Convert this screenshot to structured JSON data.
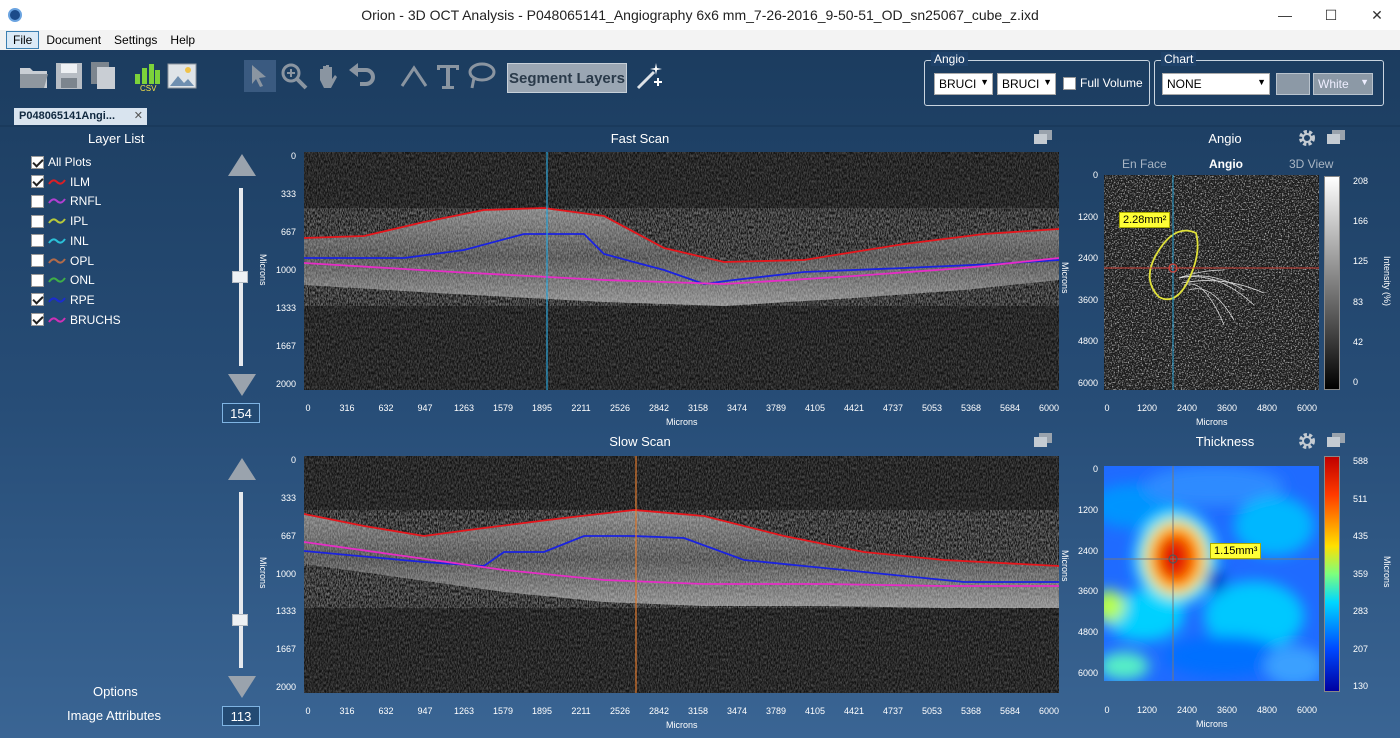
{
  "window": {
    "title": "Orion - 3D OCT Analysis - P048065141_Angiography 6x6 mm_7-26-2016_9-50-51_OD_sn25067_cube_z.ixd",
    "minimize": "—",
    "maximize": "☐",
    "close": "✕"
  },
  "menu": [
    "File",
    "Document",
    "Settings",
    "Help"
  ],
  "toolbar": {
    "segment_label": "Segment Layers",
    "csv_label": "CSV"
  },
  "angio_group": {
    "label": "Angio",
    "sel1": "BRUCI",
    "sel2": "BRUCI",
    "full_volume": "Full Volume",
    "full_volume_checked": false
  },
  "chart_group": {
    "label": "Chart",
    "select": "NONE",
    "color_select": "White"
  },
  "doc_tab": {
    "label": "P048065141Angi...",
    "close": "✕"
  },
  "layers": {
    "title": "Layer List",
    "items": [
      {
        "label": "All Plots",
        "checked": true,
        "color": ""
      },
      {
        "label": "ILM",
        "checked": true,
        "color": "#d91f26"
      },
      {
        "label": "RNFL",
        "checked": false,
        "color": "#b23fd1"
      },
      {
        "label": "IPL",
        "checked": false,
        "color": "#b7c93b"
      },
      {
        "label": "INL",
        "checked": false,
        "color": "#2bc1d8"
      },
      {
        "label": "OPL",
        "checked": false,
        "color": "#b36b4a"
      },
      {
        "label": "ONL",
        "checked": false,
        "color": "#3fae47"
      },
      {
        "label": "RPE",
        "checked": true,
        "color": "#1b2cd1"
      },
      {
        "label": "BRUCHS",
        "checked": true,
        "color": "#cf30b6"
      }
    ]
  },
  "options_label": "Options",
  "image_attributes_label": "Image Attributes",
  "fast_scan": {
    "title": "Fast Scan",
    "slice": "154",
    "slider_fraction": 0.5,
    "xlabel": "Microns",
    "ylabel": "Microns",
    "yticks": [
      "0",
      "333",
      "667",
      "1000",
      "1333",
      "1667",
      "2000"
    ],
    "xticks": [
      "0",
      "316",
      "632",
      "947",
      "1263",
      "1579",
      "1895",
      "2211",
      "2526",
      "2842",
      "3158",
      "3474",
      "3789",
      "4105",
      "4421",
      "4737",
      "5053",
      "5368",
      "5684",
      "6000"
    ]
  },
  "slow_scan": {
    "title": "Slow Scan",
    "slice": "113",
    "slider_fraction": 0.27,
    "xlabel": "Microns",
    "ylabel": "Microns",
    "yticks": [
      "0",
      "333",
      "667",
      "1000",
      "1333",
      "1667",
      "2000"
    ],
    "xticks": [
      "0",
      "316",
      "632",
      "947",
      "1263",
      "1579",
      "1895",
      "2211",
      "2526",
      "2842",
      "3158",
      "3474",
      "3789",
      "4105",
      "4421",
      "4737",
      "5053",
      "5368",
      "5684",
      "6000"
    ]
  },
  "angio_panel": {
    "title": "Angio",
    "tabs": [
      "En Face",
      "Angio",
      "3D View"
    ],
    "active_tab": "Angio",
    "annotation": "2.28mm²",
    "yticks": [
      "0",
      "1200",
      "2400",
      "3600",
      "4800",
      "6000"
    ],
    "xticks": [
      "0",
      "1200",
      "2400",
      "3600",
      "4800",
      "6000"
    ],
    "xlabel": "Microns",
    "ylabel": "Microns",
    "cbar_label": "Intensity (%)",
    "cbar_ticks": [
      "208",
      "166",
      "125",
      "83",
      "42",
      "0"
    ]
  },
  "thickness_panel": {
    "title": "Thickness",
    "annotation": "1.15mm³",
    "yticks": [
      "0",
      "1200",
      "2400",
      "3600",
      "4800",
      "6000"
    ],
    "xticks": [
      "0",
      "1200",
      "2400",
      "3600",
      "4800",
      "6000"
    ],
    "xlabel": "Microns",
    "ylabel": "Microns",
    "cbar_label": "Microns",
    "cbar_ticks": [
      "588",
      "511",
      "435",
      "359",
      "283",
      "207",
      "130"
    ]
  }
}
